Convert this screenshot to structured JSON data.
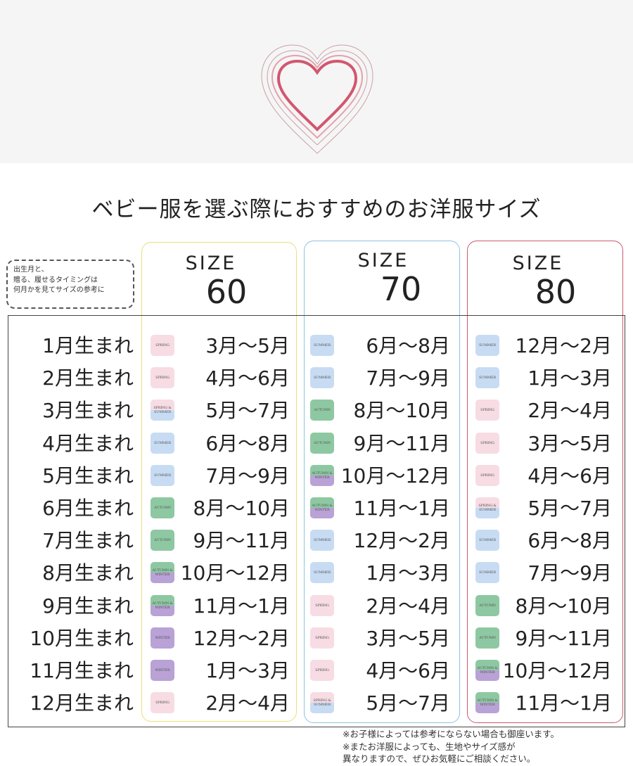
{
  "title": "ベビー服を選ぶ際におすすめのお洋服サイズ",
  "note_lines": [
    "出生月と、",
    "贈る、履せるタイミングは",
    "何月かを見てサイズの参考に"
  ],
  "colors": {
    "heart": "#d2566f",
    "frame_60": "#e9e07a",
    "frame_70": "#8fc3e4",
    "frame_80": "#c95a6e",
    "SPRING": "#f7dce4",
    "SUMMER": "#c7dcf3",
    "AUTUMN": "#8ec8a2",
    "WINTER": "#b9a2d6"
  },
  "sizes": [
    {
      "word": "SIZE",
      "num": "60"
    },
    {
      "word": "SIZE",
      "num": "70"
    },
    {
      "word": "SIZE",
      "num": "80"
    }
  ],
  "rows": [
    {
      "label": "1月生まれ",
      "s60": {
        "season": "SPRING",
        "range": "3月～5月"
      },
      "s70": {
        "season": "SUMMER",
        "range": "6月～8月"
      },
      "s80": {
        "season": "SUMMER",
        "range": "12月～2月"
      }
    },
    {
      "label": "2月生まれ",
      "s60": {
        "season": "SPRING",
        "range": "4月～6月"
      },
      "s70": {
        "season": "SUMMER",
        "range": "7月～9月"
      },
      "s80": {
        "season": "SUMMER",
        "range": "1月～3月"
      }
    },
    {
      "label": "3月生まれ",
      "s60": {
        "season": "SPRING & SUMMER",
        "range": "5月～7月"
      },
      "s70": {
        "season": "AUTUMN",
        "range": "8月～10月"
      },
      "s80": {
        "season": "SPRING",
        "range": "2月～4月"
      }
    },
    {
      "label": "4月生まれ",
      "s60": {
        "season": "SUMMER",
        "range": "6月～8月"
      },
      "s70": {
        "season": "AUTUMN",
        "range": "9月～11月"
      },
      "s80": {
        "season": "SPRING",
        "range": "3月～5月"
      }
    },
    {
      "label": "5月生まれ",
      "s60": {
        "season": "SUMMER",
        "range": "7月～9月"
      },
      "s70": {
        "season": "AUTUMN & WINTER",
        "range": "10月～12月"
      },
      "s80": {
        "season": "SPRING",
        "range": "4月～6月"
      }
    },
    {
      "label": "6月生まれ",
      "s60": {
        "season": "AUTUMN",
        "range": "8月～10月"
      },
      "s70": {
        "season": "AUTUMN & WINTER",
        "range": "11月～1月"
      },
      "s80": {
        "season": "SPRING & SUMMER",
        "range": "5月～7月"
      }
    },
    {
      "label": "7月生まれ",
      "s60": {
        "season": "AUTUMN",
        "range": "9月～11月"
      },
      "s70": {
        "season": "SUMMER",
        "range": "12月～2月"
      },
      "s80": {
        "season": "SUMMER",
        "range": "6月～8月"
      }
    },
    {
      "label": "8月生まれ",
      "s60": {
        "season": "AUTUMN & WINTER",
        "range": "10月～12月"
      },
      "s70": {
        "season": "SUMMER",
        "range": "1月～3月"
      },
      "s80": {
        "season": "SUMMER",
        "range": "7月～9月"
      }
    },
    {
      "label": "9月生まれ",
      "s60": {
        "season": "AUTUMN & WINTER",
        "range": "11月～1月"
      },
      "s70": {
        "season": "SPRING",
        "range": "2月～4月"
      },
      "s80": {
        "season": "AUTUMN",
        "range": "8月～10月"
      }
    },
    {
      "label": "10月生まれ",
      "s60": {
        "season": "WINTER",
        "range": "12月～2月"
      },
      "s70": {
        "season": "SPRING",
        "range": "3月～5月"
      },
      "s80": {
        "season": "AUTUMN",
        "range": "9月～11月"
      }
    },
    {
      "label": "11月生まれ",
      "s60": {
        "season": "WINTER",
        "range": "1月～3月"
      },
      "s70": {
        "season": "SPRING",
        "range": "4月～6月"
      },
      "s80": {
        "season": "AUTUMN & WINTER",
        "range": "10月～12月"
      }
    },
    {
      "label": "12月生まれ",
      "s60": {
        "season": "SPRING",
        "range": "2月～4月"
      },
      "s70": {
        "season": "SPRING & SUMMER",
        "range": "5月～7月"
      },
      "s80": {
        "season": "AUTUMN & WINTER",
        "range": "11月～1月"
      }
    }
  ],
  "footnotes": [
    "※お子様によっては参考にならない場合も御座います。",
    "※またお洋服によっても、生地やサイズ感が",
    "異なりますので、ぜひお気軽にご相談ください。"
  ]
}
